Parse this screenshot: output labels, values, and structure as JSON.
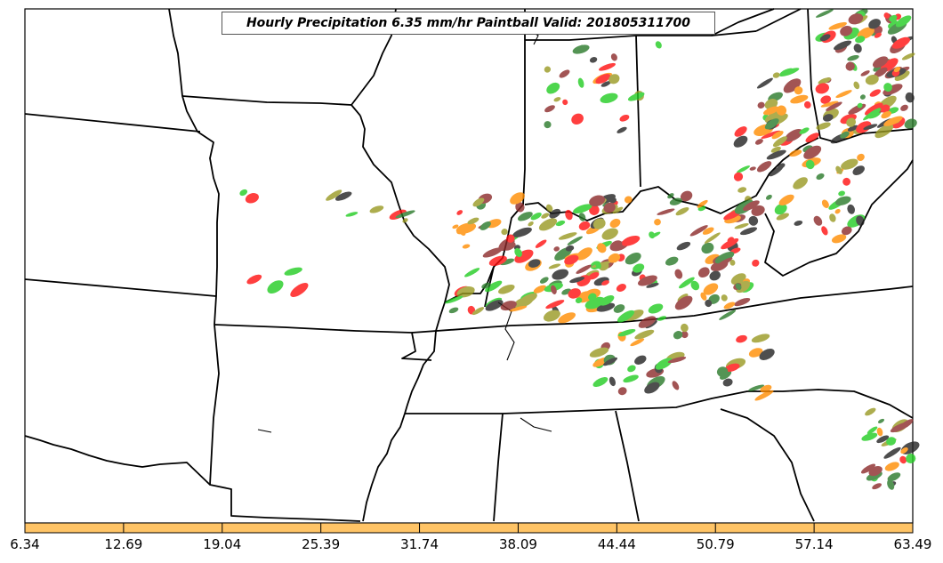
{
  "title": "Hourly Precipitation 6.35 mm/hr Paintball Valid: 201805311700",
  "colorbar": {
    "color": "#ffc466",
    "ticks": [
      "6.34",
      "12.69",
      "19.04",
      "25.39",
      "31.74",
      "38.09",
      "44.44",
      "50.79",
      "57.14",
      "63.49"
    ]
  },
  "colors": {
    "red": "#ff1010",
    "orange": "#ff8c00",
    "green": "#22cc22",
    "darkgreen": "#2a7a2a",
    "olive": "#999922",
    "brown": "#8b2a2a",
    "black": "#222222",
    "border": "#000000"
  }
}
